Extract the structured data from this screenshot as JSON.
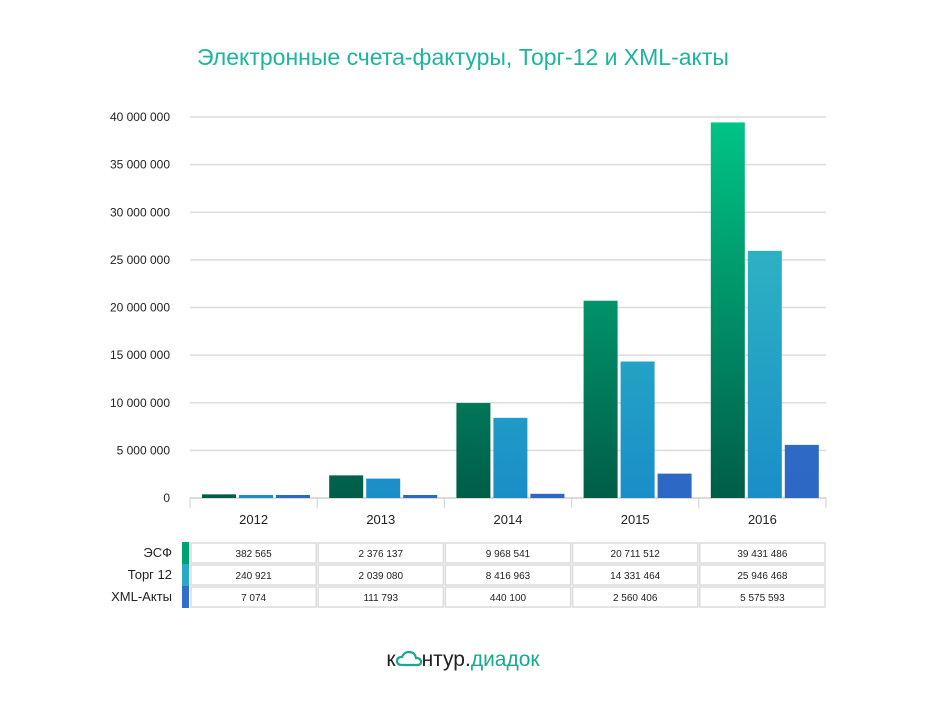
{
  "chart_data": {
    "type": "bar",
    "title": "Электронные счета-фактуры, Торг-12 и XML-акты",
    "categories": [
      "2012",
      "2013",
      "2014",
      "2015",
      "2016"
    ],
    "series": [
      {
        "name": "ЭСФ",
        "values": [
          382565,
          2376137,
          9968541,
          20711512,
          39431486
        ],
        "display": [
          "382 565",
          "2 376 137",
          "9 968 541",
          "20 711 512",
          "39 431 486"
        ],
        "color": "#00a173"
      },
      {
        "name": "Торг 12",
        "values": [
          240921,
          2039080,
          8416963,
          14331464,
          25946468
        ],
        "display": [
          "240 921",
          "2 039 080",
          "8 416 963",
          "14 331 464",
          "25 946 468"
        ],
        "color": "#28aac4"
      },
      {
        "name": "XML-Акты",
        "values": [
          7074,
          111793,
          440100,
          2560406,
          5575593
        ],
        "display": [
          "7 074",
          "111 793",
          "440 100",
          "2 560 406",
          "5 575 593"
        ],
        "color": "#3070cc"
      }
    ],
    "ylim": [
      0,
      40000000
    ],
    "yticks": [
      0,
      5000000,
      10000000,
      15000000,
      20000000,
      25000000,
      30000000,
      35000000,
      40000000
    ],
    "ytick_labels": [
      "0",
      "5 000 000",
      "10 000 000",
      "15 000 000",
      "20 000 000",
      "25 000 000",
      "30 000 000",
      "35 000 000",
      "40 000 000"
    ],
    "grid": true,
    "legend": "data-table-below"
  },
  "logo": {
    "part1": "к",
    "part2": "нтур.",
    "part3": "диадок"
  }
}
